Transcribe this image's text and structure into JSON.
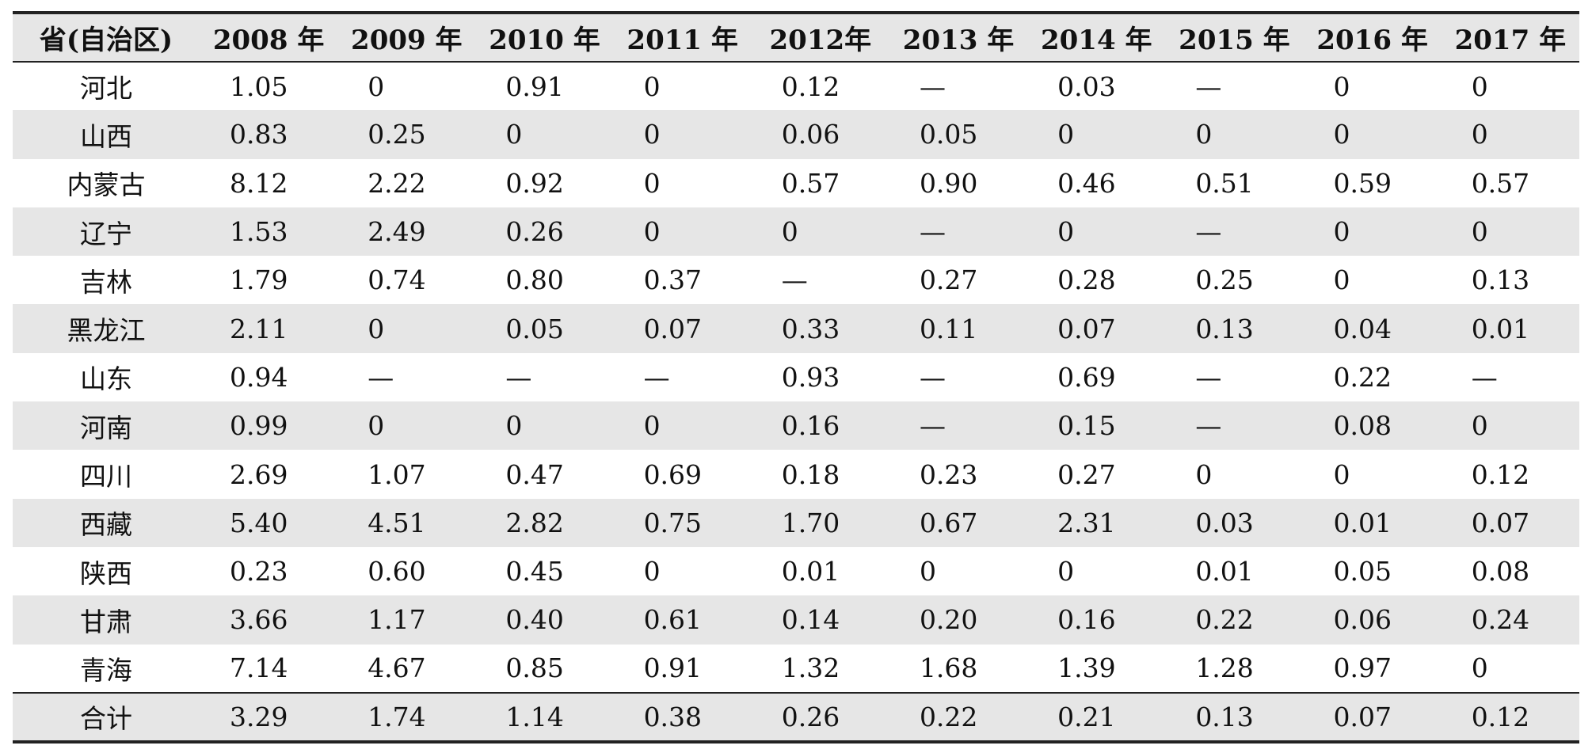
{
  "table": {
    "header": [
      "省(自治区)",
      "2008 年",
      "2009 年",
      "2010 年",
      "2011 年",
      "2012年",
      "2013 年",
      "2014 年",
      "2015 年",
      "2016 年",
      "2017 年"
    ],
    "rows": [
      {
        "province": "河北",
        "values": [
          "1.05",
          "0",
          "0.91",
          "0",
          "0.12",
          "—",
          "0.03",
          "—",
          "0",
          "0"
        ]
      },
      {
        "province": "山西",
        "values": [
          "0.83",
          "0.25",
          "0",
          "0",
          "0.06",
          "0.05",
          "0",
          "0",
          "0",
          "0"
        ]
      },
      {
        "province": "内蒙古",
        "values": [
          "8.12",
          "2.22",
          "0.92",
          "0",
          "0.57",
          "0.90",
          "0.46",
          "0.51",
          "0.59",
          "0.57"
        ]
      },
      {
        "province": "辽宁",
        "values": [
          "1.53",
          "2.49",
          "0.26",
          "0",
          "0",
          "—",
          "0",
          "—",
          "0",
          "0"
        ]
      },
      {
        "province": "吉林",
        "values": [
          "1.79",
          "0.74",
          "0.80",
          "0.37",
          "—",
          "0.27",
          "0.28",
          "0.25",
          "0",
          "0.13"
        ]
      },
      {
        "province": "黑龙江",
        "values": [
          "2.11",
          "0",
          "0.05",
          "0.07",
          "0.33",
          "0.11",
          "0.07",
          "0.13",
          "0.04",
          "0.01"
        ]
      },
      {
        "province": "山东",
        "values": [
          "0.94",
          "—",
          "—",
          "—",
          "0.93",
          "—",
          "0.69",
          "—",
          "0.22",
          "—"
        ]
      },
      {
        "province": "河南",
        "values": [
          "0.99",
          "0",
          "0",
          "0",
          "0.16",
          "—",
          "0.15",
          "—",
          "0.08",
          "0"
        ]
      },
      {
        "province": "四川",
        "values": [
          "2.69",
          "1.07",
          "0.47",
          "0.69",
          "0.18",
          "0.23",
          "0.27",
          "0",
          "0",
          "0.12"
        ]
      },
      {
        "province": "西藏",
        "values": [
          "5.40",
          "4.51",
          "2.82",
          "0.75",
          "1.70",
          "0.67",
          "2.31",
          "0.03",
          "0.01",
          "0.07"
        ]
      },
      {
        "province": "陕西",
        "values": [
          "0.23",
          "0.60",
          "0.45",
          "0",
          "0.01",
          "0",
          "0",
          "0.01",
          "0.05",
          "0.08"
        ]
      },
      {
        "province": "甘肃",
        "values": [
          "3.66",
          "1.17",
          "0.40",
          "0.61",
          "0.14",
          "0.20",
          "0.16",
          "0.22",
          "0.06",
          "0.24"
        ]
      },
      {
        "province": "青海",
        "values": [
          "7.14",
          "4.67",
          "0.85",
          "0.91",
          "1.32",
          "1.68",
          "1.39",
          "1.28",
          "0.97",
          "0"
        ]
      }
    ],
    "total": {
      "province": "合计",
      "values": [
        "3.29",
        "1.74",
        "1.14",
        "0.38",
        "0.26",
        "0.22",
        "0.21",
        "0.13",
        "0.07",
        "0.12"
      ]
    }
  }
}
